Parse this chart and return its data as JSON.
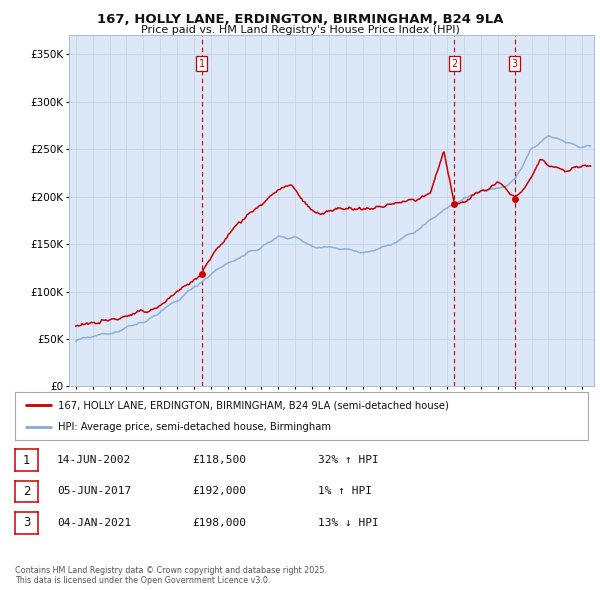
{
  "title1": "167, HOLLY LANE, ERDINGTON, BIRMINGHAM, B24 9LA",
  "title2": "Price paid vs. HM Land Registry's House Price Index (HPI)",
  "ytick_vals": [
    0,
    50000,
    100000,
    150000,
    200000,
    250000,
    300000,
    350000
  ],
  "ylim": [
    0,
    370000
  ],
  "xlim_start": 1994.6,
  "xlim_end": 2025.7,
  "grid_color": "#c8d4e8",
  "bg_color": "#dce8f8",
  "red_color": "#cc0000",
  "blue_color": "#88aad0",
  "sale1_date": 2002.45,
  "sale1_price": 118500,
  "sale2_date": 2017.43,
  "sale2_price": 192000,
  "sale3_date": 2021.01,
  "sale3_price": 198000,
  "legend_line1": "167, HOLLY LANE, ERDINGTON, BIRMINGHAM, B24 9LA (semi-detached house)",
  "legend_line2": "HPI: Average price, semi-detached house, Birmingham",
  "table_rows": [
    [
      "1",
      "14-JUN-2002",
      "£118,500",
      "32% ↑ HPI"
    ],
    [
      "2",
      "05-JUN-2017",
      "£192,000",
      "1% ↑ HPI"
    ],
    [
      "3",
      "04-JAN-2021",
      "£198,000",
      "13% ↓ HPI"
    ]
  ],
  "footer": "Contains HM Land Registry data © Crown copyright and database right 2025.\nThis data is licensed under the Open Government Licence v3.0.",
  "vline_dates": [
    2002.45,
    2017.43,
    2021.01
  ],
  "vline_labels": [
    "1",
    "2",
    "3"
  ]
}
